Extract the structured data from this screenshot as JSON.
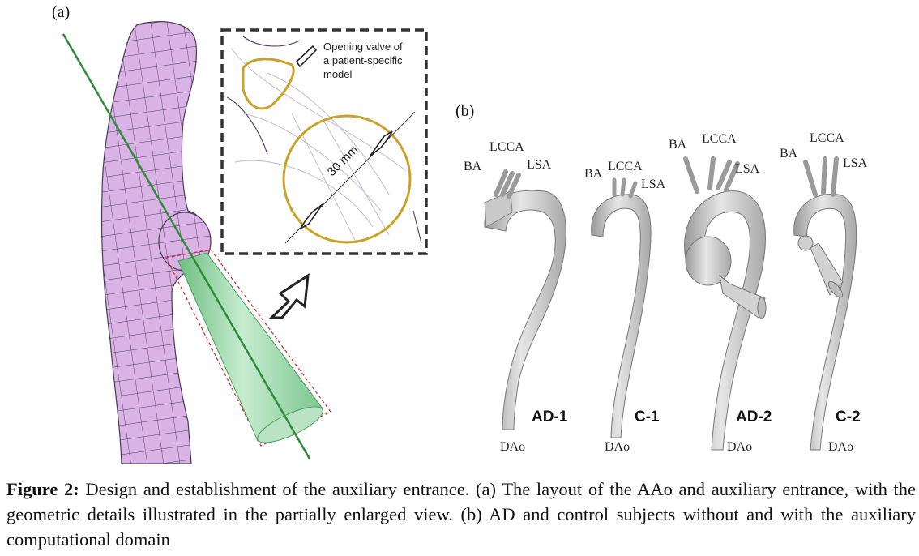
{
  "panels": {
    "a": {
      "label": "(a)",
      "inset": {
        "annotation_lines": [
          "Opening valve of",
          "a patient-specific",
          "model"
        ],
        "dimension_label": "30 mm"
      }
    },
    "b": {
      "label": "(b)",
      "models": [
        {
          "case": "AD-1",
          "branches": [
            "BA",
            "LCCA",
            "LSA"
          ],
          "outlet": "DAo"
        },
        {
          "case": "C-1",
          "branches": [
            "BA",
            "LCCA",
            "LSA"
          ],
          "outlet": "DAo"
        },
        {
          "case": "AD-2",
          "branches": [
            "BA",
            "LCCA",
            "LSA"
          ],
          "outlet": "DAo"
        },
        {
          "case": "C-2",
          "branches": [
            "BA",
            "LCCA",
            "LSA"
          ],
          "outlet": "DAo"
        }
      ]
    }
  },
  "caption": {
    "prefix": "Figure 2:",
    "text": "Design and establishment of the auxiliary entrance. (a) The layout of the AAo and auxiliary entrance, with the geometric details illustrated in the partially enlarged view. (b) AD and control subjects without and with the auxiliary computational domain"
  },
  "colors": {
    "mesh_fill": "#d9b3e6",
    "mesh_line": "#4a3a55",
    "cone_fill": "#8fd19e",
    "axis_line": "#2f8a3a",
    "valve_ring": "#c9a227",
    "aorta_fill": "#d4d4d4"
  }
}
